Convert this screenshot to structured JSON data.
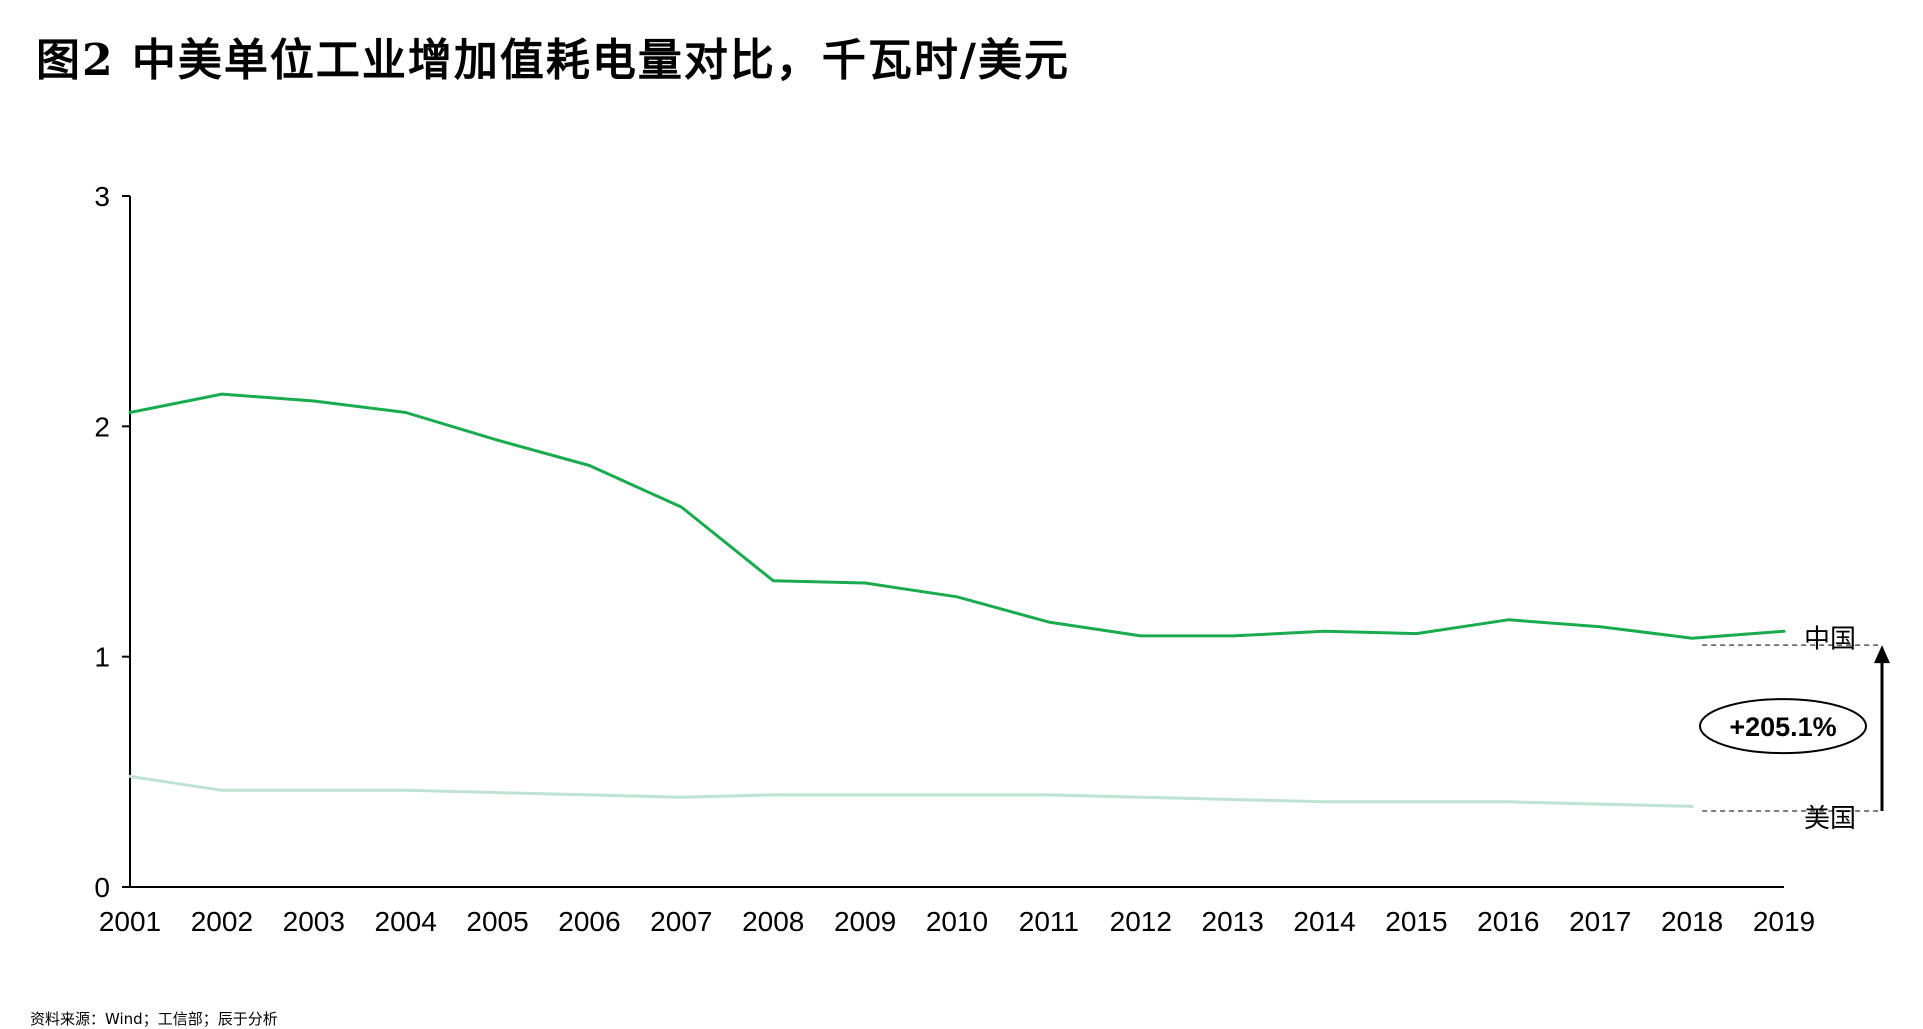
{
  "title": "图2  中美单位工业增加值耗电量对比，千瓦时/美元",
  "source": "资料来源：Wind；工信部；辰于分析",
  "colors": {
    "china": "#1aab4f",
    "usa": "#bfe3d2",
    "axis": "#000000"
  },
  "chart_data": {
    "type": "line",
    "title": "中美单位工业增加值耗电量对比，千瓦时/美元",
    "xlabel": "",
    "ylabel": "",
    "categories": [
      "2001",
      "2002",
      "2003",
      "2004",
      "2005",
      "2006",
      "2007",
      "2008",
      "2009",
      "2010",
      "2011",
      "2012",
      "2013",
      "2014",
      "2015",
      "2016",
      "2017",
      "2018",
      "2019"
    ],
    "ylim": [
      0,
      3
    ],
    "yticks": [
      0,
      1,
      2,
      3
    ],
    "grid": false,
    "series": [
      {
        "name": "中国",
        "color": "#1aab4f",
        "values": [
          2.06,
          2.14,
          2.11,
          2.06,
          1.94,
          1.83,
          1.65,
          1.33,
          1.32,
          1.26,
          1.15,
          1.09,
          1.09,
          1.11,
          1.1,
          1.16,
          1.13,
          1.08,
          1.11
        ]
      },
      {
        "name": "美国",
        "color": "#bfe3d2",
        "values": [
          0.48,
          0.42,
          0.42,
          0.42,
          0.41,
          0.4,
          0.39,
          0.4,
          0.4,
          0.4,
          0.4,
          0.39,
          0.38,
          0.37,
          0.37,
          0.37,
          0.36,
          0.35,
          null
        ]
      }
    ],
    "annotations": [
      {
        "text": "+205.1%"
      }
    ]
  }
}
